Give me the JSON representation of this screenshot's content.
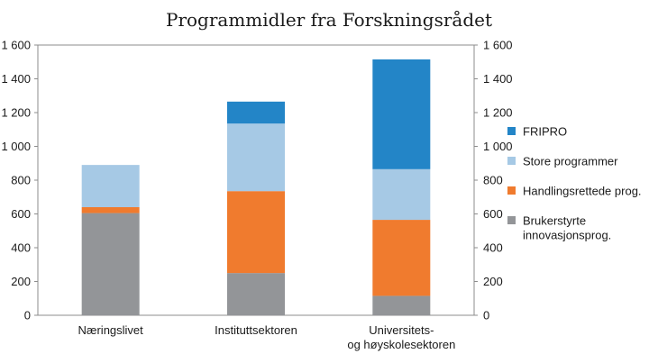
{
  "chart_data": {
    "type": "bar",
    "stacked": true,
    "title": "Programmidler fra Forskningsrådet",
    "xlabel": "",
    "ylabel": "",
    "ylim": [
      0,
      1600
    ],
    "y_ticks": [
      0,
      200,
      400,
      600,
      800,
      1000,
      1200,
      1400,
      1600
    ],
    "y_tick_labels": [
      "0",
      "200",
      "400",
      "600",
      "800",
      "1 000",
      "1 200",
      "1 400",
      "1 600"
    ],
    "secondary_y_axis": true,
    "grid": false,
    "legend_position": "right",
    "categories": [
      [
        "Næringslivet"
      ],
      [
        "Instituttsektoren"
      ],
      [
        "Universitets-",
        "og høyskolesektoren"
      ]
    ],
    "series": [
      {
        "name": [
          "Brukerstyrte",
          "innovasjonsprog."
        ],
        "color": "#939598",
        "values": [
          605,
          250,
          115
        ]
      },
      {
        "name": [
          "Handlingsrettede prog."
        ],
        "color": "#f07b2e",
        "values": [
          35,
          485,
          450
        ]
      },
      {
        "name": [
          "Store programmer"
        ],
        "color": "#a6c9e5",
        "values": [
          250,
          400,
          300
        ]
      },
      {
        "name": [
          "FRIPRO"
        ],
        "color": "#2385c7",
        "values": [
          0,
          130,
          650
        ]
      }
    ]
  }
}
